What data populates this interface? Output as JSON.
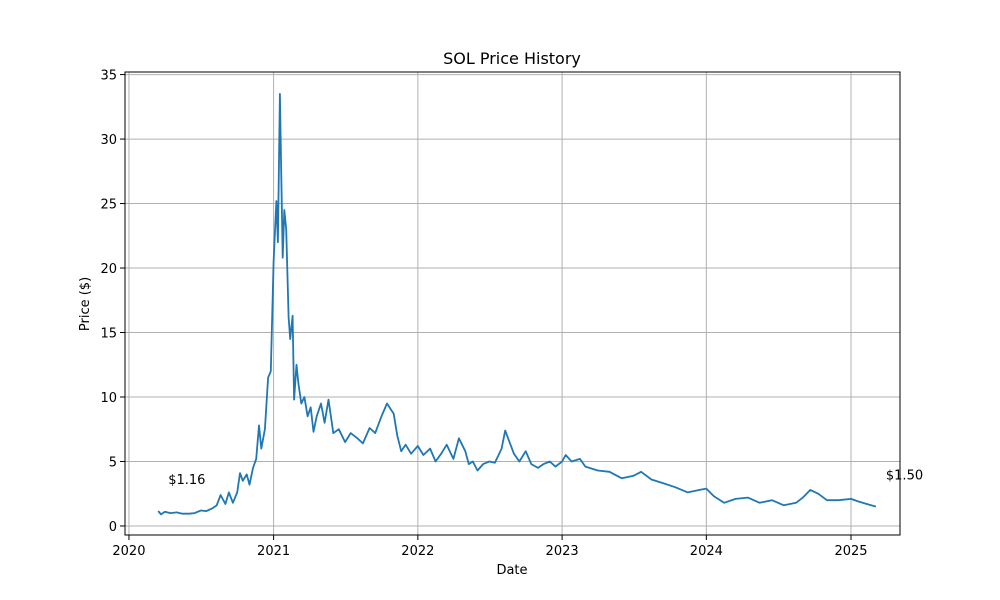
{
  "chart_data": {
    "type": "line",
    "title": "SOL Price History",
    "xlabel": "Date",
    "ylabel": "Price ($)",
    "grid": true,
    "xlim": [
      "2019-12-22",
      "2025-05-05"
    ],
    "ylim": [
      -0.7,
      35.2
    ],
    "x_ticks": [
      "2020",
      "2021",
      "2022",
      "2023",
      "2024",
      "2025"
    ],
    "y_ticks": [
      0,
      5,
      10,
      15,
      20,
      25,
      30,
      35
    ],
    "series": [
      {
        "color": "#1f77b4",
        "points": [
          [
            "2020-03-15",
            1.16
          ],
          [
            "2020-03-22",
            0.9
          ],
          [
            "2020-04-01",
            1.1
          ],
          [
            "2020-04-15",
            1.0
          ],
          [
            "2020-05-01",
            1.05
          ],
          [
            "2020-05-15",
            0.95
          ],
          [
            "2020-06-01",
            0.95
          ],
          [
            "2020-06-15",
            1.0
          ],
          [
            "2020-07-01",
            1.2
          ],
          [
            "2020-07-15",
            1.15
          ],
          [
            "2020-08-01",
            1.4
          ],
          [
            "2020-08-10",
            1.6
          ],
          [
            "2020-08-20",
            2.4
          ],
          [
            "2020-09-01",
            1.7
          ],
          [
            "2020-09-10",
            2.6
          ],
          [
            "2020-09-20",
            1.8
          ],
          [
            "2020-10-01",
            2.6
          ],
          [
            "2020-10-08",
            4.1
          ],
          [
            "2020-10-15",
            3.5
          ],
          [
            "2020-10-25",
            4.0
          ],
          [
            "2020-11-01",
            3.2
          ],
          [
            "2020-11-10",
            4.5
          ],
          [
            "2020-11-18",
            5.2
          ],
          [
            "2020-11-25",
            7.8
          ],
          [
            "2020-12-01",
            6.0
          ],
          [
            "2020-12-10",
            7.5
          ],
          [
            "2020-12-18",
            11.5
          ],
          [
            "2020-12-25",
            12.0
          ],
          [
            "2021-01-01",
            20.5
          ],
          [
            "2021-01-08",
            25.2
          ],
          [
            "2021-01-12",
            22.0
          ],
          [
            "2021-01-17",
            33.5
          ],
          [
            "2021-01-20",
            28.0
          ],
          [
            "2021-01-24",
            20.8
          ],
          [
            "2021-01-28",
            24.5
          ],
          [
            "2021-02-02",
            23.0
          ],
          [
            "2021-02-08",
            16.2
          ],
          [
            "2021-02-12",
            14.5
          ],
          [
            "2021-02-18",
            16.3
          ],
          [
            "2021-02-22",
            9.8
          ],
          [
            "2021-02-28",
            12.5
          ],
          [
            "2021-03-05",
            11.0
          ],
          [
            "2021-03-12",
            9.5
          ],
          [
            "2021-03-20",
            10.0
          ],
          [
            "2021-03-28",
            8.5
          ],
          [
            "2021-04-05",
            9.2
          ],
          [
            "2021-04-12",
            7.3
          ],
          [
            "2021-04-20",
            8.5
          ],
          [
            "2021-05-01",
            9.5
          ],
          [
            "2021-05-10",
            8.0
          ],
          [
            "2021-05-20",
            9.8
          ],
          [
            "2021-06-01",
            7.2
          ],
          [
            "2021-06-15",
            7.5
          ],
          [
            "2021-07-01",
            6.5
          ],
          [
            "2021-07-15",
            7.2
          ],
          [
            "2021-08-01",
            6.8
          ],
          [
            "2021-08-15",
            6.4
          ],
          [
            "2021-09-01",
            7.6
          ],
          [
            "2021-09-15",
            7.2
          ],
          [
            "2021-10-01",
            8.5
          ],
          [
            "2021-10-15",
            9.5
          ],
          [
            "2021-11-01",
            8.7
          ],
          [
            "2021-11-10",
            7.0
          ],
          [
            "2021-11-20",
            5.8
          ],
          [
            "2021-12-01",
            6.3
          ],
          [
            "2021-12-15",
            5.6
          ],
          [
            "2022-01-01",
            6.2
          ],
          [
            "2022-01-15",
            5.5
          ],
          [
            "2022-02-01",
            6.0
          ],
          [
            "2022-02-15",
            5.0
          ],
          [
            "2022-03-01",
            5.6
          ],
          [
            "2022-03-15",
            6.3
          ],
          [
            "2022-04-01",
            5.2
          ],
          [
            "2022-04-15",
            6.8
          ],
          [
            "2022-05-01",
            5.8
          ],
          [
            "2022-05-10",
            4.8
          ],
          [
            "2022-05-20",
            5.0
          ],
          [
            "2022-06-01",
            4.3
          ],
          [
            "2022-06-15",
            4.8
          ],
          [
            "2022-07-01",
            5.0
          ],
          [
            "2022-07-15",
            4.9
          ],
          [
            "2022-08-01",
            6.0
          ],
          [
            "2022-08-10",
            7.4
          ],
          [
            "2022-08-20",
            6.6
          ],
          [
            "2022-09-01",
            5.6
          ],
          [
            "2022-09-15",
            5.0
          ],
          [
            "2022-10-01",
            5.8
          ],
          [
            "2022-10-15",
            4.8
          ],
          [
            "2022-11-01",
            4.5
          ],
          [
            "2022-11-15",
            4.8
          ],
          [
            "2022-12-01",
            5.0
          ],
          [
            "2022-12-15",
            4.6
          ],
          [
            "2023-01-01",
            5.0
          ],
          [
            "2023-01-10",
            5.5
          ],
          [
            "2023-01-25",
            5.0
          ],
          [
            "2023-02-15",
            5.2
          ],
          [
            "2023-03-01",
            4.6
          ],
          [
            "2023-04-01",
            4.3
          ],
          [
            "2023-05-01",
            4.2
          ],
          [
            "2023-06-01",
            3.7
          ],
          [
            "2023-07-01",
            3.9
          ],
          [
            "2023-07-20",
            4.2
          ],
          [
            "2023-08-15",
            3.6
          ],
          [
            "2023-09-15",
            3.3
          ],
          [
            "2023-10-15",
            3.0
          ],
          [
            "2023-11-15",
            2.6
          ],
          [
            "2023-12-15",
            2.8
          ],
          [
            "2024-01-01",
            2.9
          ],
          [
            "2024-01-20",
            2.3
          ],
          [
            "2024-02-15",
            1.8
          ],
          [
            "2024-03-15",
            2.1
          ],
          [
            "2024-04-15",
            2.2
          ],
          [
            "2024-05-15",
            1.8
          ],
          [
            "2024-06-15",
            2.0
          ],
          [
            "2024-07-15",
            1.6
          ],
          [
            "2024-08-15",
            1.8
          ],
          [
            "2024-09-01",
            2.2
          ],
          [
            "2024-09-20",
            2.8
          ],
          [
            "2024-10-10",
            2.5
          ],
          [
            "2024-11-01",
            2.0
          ],
          [
            "2024-12-01",
            2.0
          ],
          [
            "2025-01-01",
            2.1
          ],
          [
            "2025-01-20",
            1.9
          ],
          [
            "2025-02-10",
            1.7
          ],
          [
            "2025-03-05",
            1.5
          ]
        ]
      }
    ],
    "annotations": [
      {
        "x": "2020-03-15",
        "y": 1.16,
        "text": "$1.16"
      },
      {
        "x": "2025-03-05",
        "y": 1.5,
        "text": "$1.50"
      }
    ]
  }
}
